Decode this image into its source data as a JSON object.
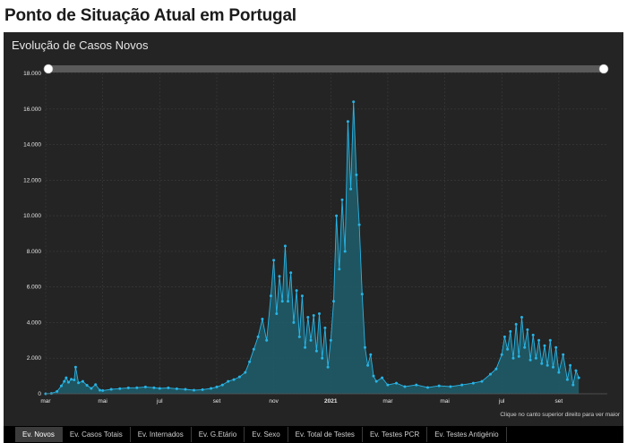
{
  "page": {
    "title": "Ponto de Situação Atual em Portugal"
  },
  "chart": {
    "title": "Evolução de Casos Novos",
    "footnote": "Clique no canto superior direito para ver maior",
    "colors": {
      "line": "#27b4e6",
      "area": "#1e5e6b",
      "background": "#242424",
      "grid": "#3d3d3d"
    }
  },
  "tabs": [
    {
      "label": "Ev. Novos",
      "active": true
    },
    {
      "label": "Ev. Casos Totais",
      "active": false
    },
    {
      "label": "Ev. Internados",
      "active": false
    },
    {
      "label": "Ev. G.Etário",
      "active": false
    },
    {
      "label": "Ev. Sexo",
      "active": false
    },
    {
      "label": "Ev. Total de Testes",
      "active": false
    },
    {
      "label": "Ev. Testes PCR",
      "active": false
    },
    {
      "label": "Ev. Testes Antigénio",
      "active": false
    }
  ],
  "chart_data": {
    "type": "area",
    "title": "Evolução de Casos Novos",
    "xlabel": "",
    "ylabel": "",
    "x_tick_labels": [
      {
        "label": "mar",
        "month": 0
      },
      {
        "label": "mai",
        "month": 2
      },
      {
        "label": "jul",
        "month": 4
      },
      {
        "label": "set",
        "month": 6
      },
      {
        "label": "nov",
        "month": 8
      },
      {
        "label": "2021",
        "month": 10,
        "bold": true
      },
      {
        "label": "mar",
        "month": 12
      },
      {
        "label": "mai",
        "month": 14
      },
      {
        "label": "jul",
        "month": 16
      },
      {
        "label": "set",
        "month": 18
      }
    ],
    "y_tick_labels": [
      "0",
      "2.000",
      "4.000",
      "6.000",
      "8.000",
      "10.000",
      "12.000",
      "14.000",
      "16.000",
      "18.000"
    ],
    "ylim": [
      0,
      18000
    ],
    "xlim_months_from_mar_2020": [
      0,
      19.7
    ],
    "grid": true,
    "range_slider": true,
    "series": [
      {
        "points": [
          [
            0.0,
            0
          ],
          [
            0.2,
            20
          ],
          [
            0.4,
            130
          ],
          [
            0.55,
            450
          ],
          [
            0.65,
            700
          ],
          [
            0.72,
            900
          ],
          [
            0.8,
            650
          ],
          [
            0.9,
            820
          ],
          [
            1.0,
            780
          ],
          [
            1.05,
            1500
          ],
          [
            1.15,
            620
          ],
          [
            1.3,
            700
          ],
          [
            1.45,
            480
          ],
          [
            1.6,
            300
          ],
          [
            1.75,
            520
          ],
          [
            1.9,
            200
          ],
          [
            2.0,
            180
          ],
          [
            2.3,
            250
          ],
          [
            2.6,
            290
          ],
          [
            2.9,
            330
          ],
          [
            3.2,
            340
          ],
          [
            3.5,
            380
          ],
          [
            3.8,
            340
          ],
          [
            4.0,
            300
          ],
          [
            4.3,
            330
          ],
          [
            4.6,
            280
          ],
          [
            4.9,
            250
          ],
          [
            5.2,
            200
          ],
          [
            5.5,
            230
          ],
          [
            5.8,
            300
          ],
          [
            6.0,
            380
          ],
          [
            6.2,
            500
          ],
          [
            6.4,
            700
          ],
          [
            6.6,
            800
          ],
          [
            6.8,
            950
          ],
          [
            7.0,
            1200
          ],
          [
            7.15,
            1800
          ],
          [
            7.3,
            2500
          ],
          [
            7.45,
            3200
          ],
          [
            7.6,
            4200
          ],
          [
            7.75,
            3000
          ],
          [
            7.9,
            5500
          ],
          [
            8.0,
            7500
          ],
          [
            8.1,
            4500
          ],
          [
            8.2,
            6600
          ],
          [
            8.3,
            5200
          ],
          [
            8.4,
            8300
          ],
          [
            8.5,
            5200
          ],
          [
            8.6,
            6800
          ],
          [
            8.7,
            4000
          ],
          [
            8.8,
            5800
          ],
          [
            8.9,
            3200
          ],
          [
            9.0,
            5500
          ],
          [
            9.1,
            2600
          ],
          [
            9.2,
            4300
          ],
          [
            9.3,
            3000
          ],
          [
            9.4,
            4400
          ],
          [
            9.5,
            2400
          ],
          [
            9.6,
            4500
          ],
          [
            9.7,
            2000
          ],
          [
            9.8,
            3700
          ],
          [
            9.9,
            1500
          ],
          [
            10.0,
            3000
          ],
          [
            10.1,
            5200
          ],
          [
            10.2,
            10000
          ],
          [
            10.3,
            7000
          ],
          [
            10.4,
            10900
          ],
          [
            10.5,
            8000
          ],
          [
            10.6,
            15300
          ],
          [
            10.7,
            11500
          ],
          [
            10.8,
            16400
          ],
          [
            10.9,
            12300
          ],
          [
            11.0,
            9500
          ],
          [
            11.1,
            5600
          ],
          [
            11.2,
            2600
          ],
          [
            11.3,
            1600
          ],
          [
            11.4,
            2200
          ],
          [
            11.5,
            1000
          ],
          [
            11.6,
            700
          ],
          [
            11.8,
            900
          ],
          [
            12.0,
            500
          ],
          [
            12.3,
            600
          ],
          [
            12.6,
            400
          ],
          [
            13.0,
            500
          ],
          [
            13.4,
            350
          ],
          [
            13.8,
            450
          ],
          [
            14.2,
            400
          ],
          [
            14.6,
            500
          ],
          [
            15.0,
            600
          ],
          [
            15.3,
            700
          ],
          [
            15.6,
            1100
          ],
          [
            15.8,
            1400
          ],
          [
            16.0,
            2200
          ],
          [
            16.1,
            3200
          ],
          [
            16.2,
            2500
          ],
          [
            16.3,
            3500
          ],
          [
            16.4,
            2000
          ],
          [
            16.5,
            3900
          ],
          [
            16.6,
            2100
          ],
          [
            16.7,
            4300
          ],
          [
            16.8,
            2600
          ],
          [
            16.9,
            3600
          ],
          [
            17.0,
            1900
          ],
          [
            17.1,
            3300
          ],
          [
            17.2,
            2000
          ],
          [
            17.3,
            3000
          ],
          [
            17.4,
            1700
          ],
          [
            17.5,
            2700
          ],
          [
            17.6,
            1600
          ],
          [
            17.7,
            3000
          ],
          [
            17.8,
            1500
          ],
          [
            17.9,
            2600
          ],
          [
            18.0,
            1200
          ],
          [
            18.15,
            2200
          ],
          [
            18.3,
            800
          ],
          [
            18.4,
            1600
          ],
          [
            18.5,
            500
          ],
          [
            18.6,
            1300
          ],
          [
            18.7,
            900
          ]
        ]
      }
    ]
  }
}
